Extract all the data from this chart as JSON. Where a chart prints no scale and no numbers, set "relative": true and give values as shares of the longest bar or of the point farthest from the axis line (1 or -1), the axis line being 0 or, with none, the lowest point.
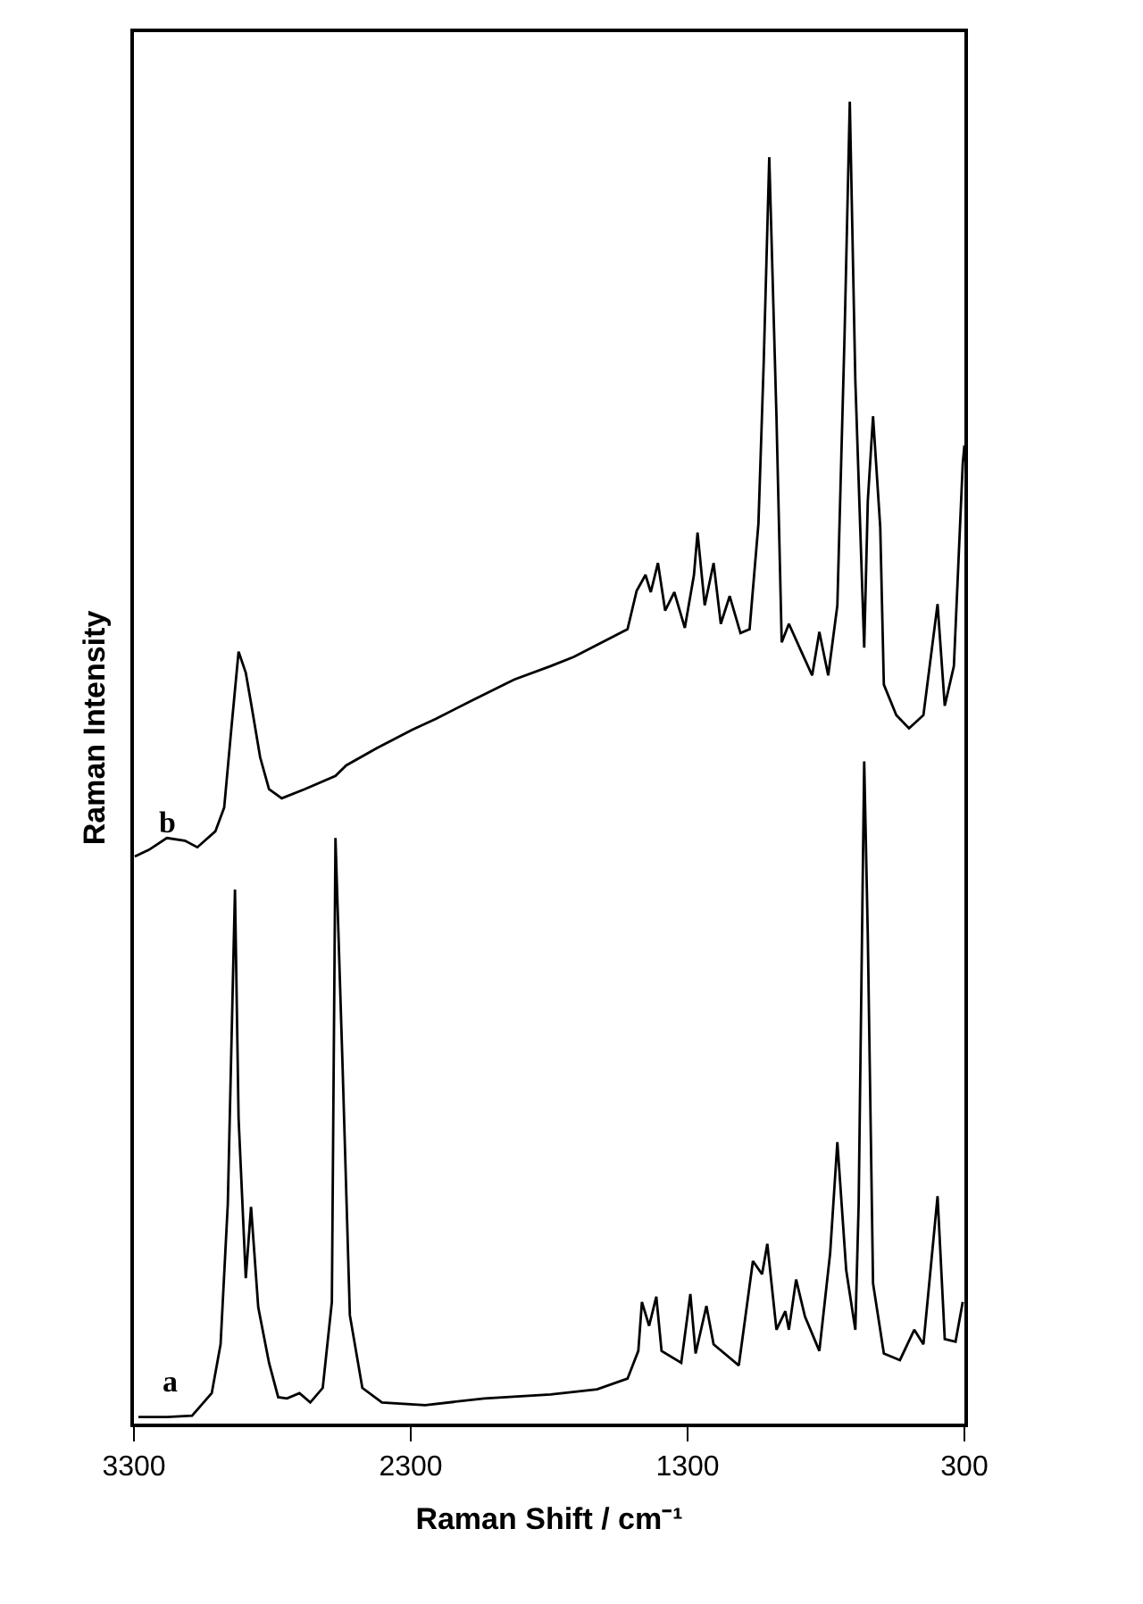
{
  "chart_data": {
    "type": "line",
    "xlabel": "Raman Shift / cm⁻¹",
    "ylabel": "Raman Intensity",
    "xlim": [
      3300,
      300
    ],
    "xticks": [
      3300,
      2300,
      1300,
      300
    ],
    "relative": true,
    "legend": false,
    "marker": "none",
    "line_style": "solid",
    "series": [
      {
        "name": "b",
        "color": "#000000",
        "x": [
          3297,
          3246,
          3181,
          3116,
          3071,
          3006,
          2974,
          2948,
          2922,
          2896,
          2877,
          2844,
          2812,
          2766,
          2682,
          2572,
          2533,
          2423,
          2294,
          2210,
          2080,
          1925,
          1795,
          1711,
          1517,
          1484,
          1452,
          1433,
          1407,
          1381,
          1348,
          1310,
          1277,
          1264,
          1238,
          1206,
          1180,
          1148,
          1109,
          1076,
          1044,
          1025,
          1005,
          979,
          960,
          934,
          889,
          850,
          824,
          792,
          759,
          733,
          714,
          694,
          662,
          649,
          630,
          604,
          591,
          546,
          500,
          448,
          397,
          371,
          338,
          306,
          300
        ],
        "values": [
          0.429,
          0.434,
          0.443,
          0.441,
          0.436,
          0.448,
          0.466,
          0.526,
          0.584,
          0.568,
          0.545,
          0.504,
          0.48,
          0.473,
          0.48,
          0.49,
          0.498,
          0.511,
          0.525,
          0.533,
          0.547,
          0.563,
          0.573,
          0.58,
          0.601,
          0.63,
          0.642,
          0.629,
          0.651,
          0.615,
          0.629,
          0.602,
          0.642,
          0.674,
          0.619,
          0.651,
          0.605,
          0.626,
          0.598,
          0.601,
          0.681,
          0.803,
          0.958,
          0.762,
          0.591,
          0.605,
          0.584,
          0.566,
          0.599,
          0.566,
          0.619,
          0.823,
          1,
          0.789,
          0.587,
          0.698,
          0.762,
          0.678,
          0.559,
          0.536,
          0.526,
          0.536,
          0.62,
          0.543,
          0.573,
          0.726,
          0.74
        ]
      },
      {
        "name": "a",
        "color": "#000000",
        "x": [
          3284,
          3181,
          3090,
          3019,
          2987,
          2961,
          2935,
          2922,
          2896,
          2877,
          2851,
          2812,
          2779,
          2747,
          2702,
          2663,
          2618,
          2585,
          2572,
          2546,
          2520,
          2475,
          2404,
          2248,
          2035,
          1795,
          1627,
          1517,
          1478,
          1465,
          1439,
          1413,
          1394,
          1323,
          1290,
          1271,
          1232,
          1206,
          1115,
          1064,
          1031,
          1012,
          979,
          947,
          934,
          908,
          876,
          824,
          785,
          759,
          727,
          694,
          682,
          662,
          649,
          630,
          591,
          533,
          481,
          448,
          397,
          371,
          332,
          306
        ],
        "values": [
          0.005,
          0.005,
          0.006,
          0.023,
          0.06,
          0.166,
          0.404,
          0.231,
          0.11,
          0.164,
          0.088,
          0.046,
          0.02,
          0.019,
          0.023,
          0.016,
          0.027,
          0.092,
          0.443,
          0.268,
          0.082,
          0.027,
          0.016,
          0.014,
          0.019,
          0.022,
          0.026,
          0.034,
          0.055,
          0.092,
          0.074,
          0.096,
          0.055,
          0.046,
          0.098,
          0.053,
          0.089,
          0.06,
          0.044,
          0.123,
          0.113,
          0.136,
          0.071,
          0.085,
          0.071,
          0.109,
          0.081,
          0.055,
          0.129,
          0.213,
          0.116,
          0.071,
          0.166,
          0.501,
          0.369,
          0.106,
          0.053,
          0.048,
          0.071,
          0.06,
          0.172,
          0.064,
          0.062,
          0.092
        ]
      }
    ]
  }
}
